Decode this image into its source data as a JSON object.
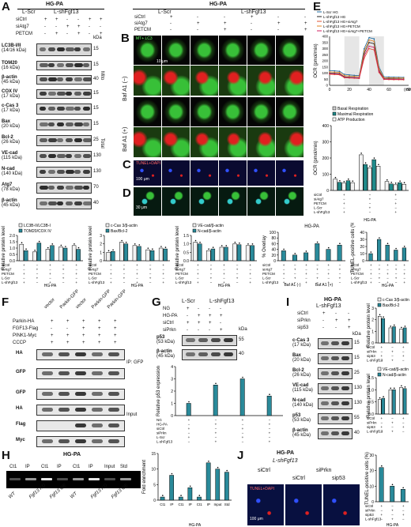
{
  "panels": {
    "A": {
      "label": "A",
      "title": "HG-PA",
      "groups": [
        "L-Scr",
        "L-shFgf13"
      ],
      "rows": [
        "siCtrl",
        "siAtg7",
        "PETCM"
      ],
      "row_signs": [
        [
          "+",
          "+",
          "-",
          "-",
          "+",
          "+"
        ],
        [
          "-",
          "-",
          "+",
          "+",
          "-",
          "-"
        ],
        [
          "-",
          "+",
          "-",
          "+",
          "-",
          "+"
        ]
      ],
      "kda": "kDa",
      "blots": [
        {
          "name": "LC3B-I/II",
          "mw": "(14/16 kDa)",
          "kda": "15"
        },
        {
          "name": "TOM20",
          "mw": "(16 kDa)",
          "kda": "15"
        },
        {
          "name": "β-actin",
          "mw": "(45 kDa)",
          "kda": "40"
        },
        {
          "name": "COX IV",
          "mw": "(17 kDa)",
          "kda": "15"
        },
        {
          "name": "c-Cas 3",
          "mw": "(17 kDa)",
          "kda": "15"
        },
        {
          "name": "Bax",
          "mw": "(20 kDa)",
          "kda": "15"
        },
        {
          "name": "Bcl-2",
          "mw": "(26 kDa)",
          "kda": "25"
        },
        {
          "name": "VE-cad",
          "mw": "(115 kDa)",
          "kda": "130"
        },
        {
          "name": "N-cad",
          "mw": "(140 kDa)",
          "kda": "130"
        },
        {
          "name": "Atg7",
          "mw": "(78 kDa)",
          "kda": "70"
        },
        {
          "name": "β-actin",
          "mw": "(45 kDa)",
          "kda": "40"
        }
      ],
      "side_labels": [
        "Mito",
        "Total"
      ]
    },
    "B": {
      "label": "B",
      "title": "HG-PA",
      "groups": [
        "L-Scr",
        "L-shFgf13"
      ],
      "rows": [
        "siCtrl",
        "siAtg7",
        "PETCM"
      ],
      "row_signs": [
        [
          "+",
          "-",
          "-",
          "+",
          "-",
          "-"
        ],
        [
          "-",
          "+",
          "+",
          "-",
          "+",
          "+"
        ],
        [
          "-",
          "-",
          "+",
          "-",
          "-",
          "+"
        ]
      ],
      "stain": "MT+ LC3",
      "scale": "10 μm",
      "side_labels": [
        "Baf A1 (−)",
        "Baf A1 (+)"
      ]
    },
    "C": {
      "label": "C",
      "stain": "TUNEL+DAPI",
      "scale": "100 μm"
    },
    "D": {
      "label": "D",
      "scale": "30 μm"
    },
    "E": {
      "label": "E",
      "legend": [
        "L-Scr HG",
        "L-shFgf13 HG",
        "L-shFgf13 HG+siAtg7",
        "L-shFgf13 HG+PETCM",
        "L-shFgf13 HG+siAtg7+PETCM"
      ],
      "ylabel": "OCR (pmol/min)",
      "xlabel": "(min)",
      "xticks": [
        "0",
        "20",
        "40",
        "60",
        "80"
      ],
      "yticks": [
        "0",
        "50",
        "100",
        "150",
        "200",
        "250",
        "300",
        "350",
        "400"
      ],
      "bar_legend": [
        "Basal Respiration",
        "Maximal Respiration",
        "ATP Production"
      ],
      "bar_ylabel": "OCR (pmol/min)",
      "bar_yticks": [
        "0",
        "100",
        "200",
        "300",
        "400"
      ],
      "bar_rows": [
        "siCtrl",
        "siAtg7",
        "PETCM",
        "L-Scr",
        "L-shFgf13"
      ],
      "group_label": "HG-PA"
    },
    "row2": {
      "charts": [
        {
          "legend": [
            "LC3B-II/LC3B-I",
            "TOM20/COX IV"
          ],
          "ylabel": "Relative protein level",
          "yticks": [
            "0.0",
            "0.5",
            "1.0",
            "1.5",
            "2.0"
          ]
        },
        {
          "legend": [
            "c-Cas 3/β-actin",
            "Bax/Bcl-2"
          ],
          "ylabel": "Relative protein level",
          "yticks": [
            "0",
            "1",
            "2",
            "3"
          ]
        },
        {
          "legend": [
            "VE-cad/β-actin",
            "N-cad/β-actin"
          ],
          "ylabel": "Relative protein level",
          "yticks": [
            "0.0",
            "0.5",
            "1.0",
            "1.5"
          ]
        },
        {
          "title": "HG-PA",
          "ylabel": "% Overlay",
          "yticks": [
            "0",
            "20",
            "40",
            "60",
            "80",
            "100"
          ],
          "groups": [
            "Baf A1 (-)",
            "Baf A1 (+)"
          ]
        },
        {
          "ylabel": "TUNEL-positive cells (%)",
          "yticks": [
            "0",
            "10",
            "20",
            "30",
            "40"
          ]
        }
      ],
      "rows": [
        "siCtrl",
        "siAtg7",
        "PETCM",
        "L-Scr",
        "L-shFgf13"
      ],
      "group_label": "HG-PA"
    },
    "F": {
      "label": "F",
      "cols": [
        "vector",
        "Parkin-GFP",
        "vector",
        "Parkin-GFP",
        "Parkin-GFP"
      ],
      "rows": [
        "Parkin-HA",
        "FGF13-Flag",
        "PINK1-Myc",
        "CCCP"
      ],
      "row_signs": [
        [
          "+",
          "+",
          "+",
          "+",
          "+"
        ],
        [
          "-",
          "-",
          "+",
          "+",
          "+"
        ],
        [
          "+",
          "+",
          "+",
          "+",
          "+"
        ],
        [
          "+",
          "+",
          "+",
          "+",
          "+"
        ]
      ],
      "blots": [
        "HA",
        "GFP",
        "GFP",
        "HA",
        "Flag",
        "Myc"
      ],
      "side_labels": [
        "IP: GFP",
        "Input"
      ]
    },
    "G": {
      "label": "G",
      "groups": [
        "L-Scr",
        "L-shFgf13"
      ],
      "rows": [
        "NG",
        "HG-PA",
        "siCtrl",
        "siPrkn"
      ],
      "row_signs": [
        [
          "+",
          "-",
          "-",
          "-"
        ],
        [
          "-",
          "+",
          "+",
          "+"
        ],
        [
          "+",
          "+",
          "+",
          "-"
        ],
        [
          "-",
          "-",
          "-",
          "+"
        ]
      ],
      "kda": "kDa",
      "blots": [
        {
          "name": "p53",
          "mw": "(53 kDa)",
          "kda": "55"
        },
        {
          "name": "β-actin",
          "mw": "(45 kDa)",
          "kda": "40"
        }
      ],
      "chart": {
        "ylabel": "Relative p53 expression",
        "yticks": [
          "0",
          "1",
          "2",
          "3",
          "4"
        ],
        "rows": [
          "NG",
          "HG-PA",
          "siCtrl",
          "siPrkn",
          "L-Scr",
          "L-shFgf13"
        ]
      }
    },
    "H": {
      "label": "H",
      "title": "HG-PA",
      "lanes": [
        "Ct1",
        "IP",
        "Ct1",
        "IP",
        "Ct1",
        "IP",
        "Input",
        "Std"
      ],
      "group_labels": [
        "WT",
        "Fgf13 KD",
        "Fgf13 OE",
        "WT",
        "Fgf13 KD",
        "Fgf13 OE"
      ],
      "chart": {
        "ylabel": "Fold enrichment",
        "yticks": [
          "0",
          "5",
          "10",
          "15"
        ],
        "xlabels": [
          "Ct1",
          "IP",
          "Ct1",
          "IP",
          "Ct1",
          "IP",
          "Input",
          "Std"
        ],
        "rows": [
          "WT",
          "Fgf13 KD",
          "Fgf13 OE"
        ],
        "group_label": "HG-PA"
      }
    },
    "I": {
      "label": "I",
      "title": "HG-PA",
      "group": "L-shFgf13",
      "rows": [
        "siCtrl",
        "siPrkn",
        "sip53"
      ],
      "row_signs": [
        [
          "+",
          "-",
          "-"
        ],
        [
          "-",
          "+",
          "+"
        ],
        [
          "-",
          "-",
          "+"
        ]
      ],
      "kda": "kDa",
      "blots": [
        {
          "name": "c-Cas 3",
          "mw": "(17 kDa)",
          "kda": "15"
        },
        {
          "name": "Bax",
          "mw": "(20 kDa)",
          "kda": "15"
        },
        {
          "name": "Bcl-2",
          "mw": "(26 kDa)",
          "kda": "25"
        },
        {
          "name": "VE-cad",
          "mw": "(115 kDa)",
          "kda": "130"
        },
        {
          "name": "N-cad",
          "mw": "(140 kDa)",
          "kda": "130"
        },
        {
          "name": "p53",
          "mw": "(53 kDa)",
          "kda": "55"
        },
        {
          "name": "β-actin",
          "mw": "(45 kDa)",
          "kda": "40"
        }
      ],
      "charts": [
        {
          "legend": [
            "c-Cas 3/β-actin",
            "Bax/Bcl-2"
          ],
          "ylabel": "Relative protein level",
          "yticks": [
            "0",
            "1",
            "2",
            "3"
          ]
        },
        {
          "legend": [
            "VE-cad/β-actin",
            "N-cad/β-actin"
          ],
          "ylabel": "Relative protein level",
          "yticks": [
            "0.0",
            "0.5",
            "1.0",
            "1.5"
          ]
        }
      ],
      "rows_chart": [
        "siCtrl",
        "siPrkn",
        "sip53",
        "L-shFgf13"
      ]
    },
    "J": {
      "label": "J",
      "title": "HG-PA",
      "group": "L-shFgf13",
      "cols": [
        "siCtrl",
        "siPrkn"
      ],
      "sub": [
        "siCtrl",
        "sip53"
      ],
      "stain": "TUNEL+DAPI",
      "scale": "100 μm",
      "chart": {
        "ylabel": "TUNEL-positive cells (%)",
        "yticks": [
          "0",
          "10",
          "20",
          "30"
        ],
        "rows": [
          "siCtrl",
          "siPrkn",
          "sip53",
          "L-shFgf13"
        ],
        "group_label": "HG-PA"
      }
    }
  },
  "colors": {
    "teal": "#2a8a9a",
    "white_bar": "#f2f2f2",
    "green": "#38c038",
    "red": "#e02020",
    "blue": "#3050ff"
  },
  "chart_data": [
    {
      "type": "line",
      "title": "",
      "xlabel": "(min)",
      "ylabel": "OCR (pmol/min)",
      "x": [
        0,
        5,
        10,
        15,
        20,
        25,
        30,
        35,
        40,
        45,
        50,
        55,
        60,
        65,
        70,
        75
      ],
      "series": [
        {
          "name": "L-Scr HG",
          "values": [
            120,
            118,
            115,
            90,
            85,
            82,
            80,
            300,
            390,
            380,
            150,
            70,
            68,
            67,
            66,
            65
          ]
        },
        {
          "name": "L-shFgf13 HG",
          "values": [
            100,
            98,
            96,
            70,
            66,
            64,
            62,
            260,
            350,
            340,
            120,
            55,
            54,
            53,
            52,
            51
          ]
        },
        {
          "name": "L-shFgf13 HG+siAtg7",
          "values": [
            90,
            88,
            86,
            62,
            60,
            58,
            56,
            220,
            300,
            290,
            105,
            48,
            47,
            46,
            46,
            45
          ]
        },
        {
          "name": "L-shFgf13 HG+PETCM",
          "values": [
            110,
            108,
            106,
            80,
            76,
            74,
            72,
            280,
            370,
            360,
            135,
            62,
            61,
            60,
            60,
            59
          ]
        },
        {
          "name": "L-shFgf13 HG+siAtg7+PETCM",
          "values": [
            95,
            93,
            91,
            66,
            63,
            61,
            60,
            240,
            320,
            310,
            112,
            51,
            50,
            49,
            49,
            48
          ]
        }
      ],
      "ylim": [
        0,
        400
      ],
      "xlim": [
        0,
        80
      ]
    },
    {
      "type": "bar",
      "title": "",
      "ylabel": "OCR (pmol/min)",
      "categories": [
        "Basal Respiration",
        "Maximal Respiration",
        "ATP Production"
      ],
      "series": [
        {
          "name": "1",
          "values": [
            70,
            220,
            55
          ]
        },
        {
          "name": "2",
          "values": [
            50,
            160,
            40
          ]
        },
        {
          "name": "3",
          "values": [
            45,
            140,
            35
          ]
        },
        {
          "name": "4",
          "values": [
            60,
            190,
            48
          ]
        },
        {
          "name": "5",
          "values": [
            48,
            150,
            38
          ]
        }
      ],
      "ylim": [
        0,
        400
      ]
    },
    {
      "type": "bar",
      "ylabel": "Relative protein level",
      "categories": [
        "1",
        "2",
        "3",
        "4",
        "5"
      ],
      "series": [
        {
          "name": "LC3B-II/LC3B-I",
          "values": [
            1.3,
            0.7,
            0.9,
            1.1,
            1.2
          ]
        },
        {
          "name": "TOM20/COX IV",
          "values": [
            0.8,
            1.4,
            1.2,
            1.0,
            0.9
          ]
        }
      ],
      "ylim": [
        0,
        2
      ]
    },
    {
      "type": "bar",
      "ylabel": "Relative protein level",
      "categories": [
        "1",
        "2",
        "3",
        "4",
        "5"
      ],
      "series": [
        {
          "name": "c-Cas 3/β-actin",
          "values": [
            1.0,
            2.2,
            1.8,
            1.3,
            1.5
          ]
        },
        {
          "name": "Bax/Bcl-2",
          "values": [
            1.1,
            2.0,
            1.7,
            1.2,
            1.4
          ]
        }
      ],
      "ylim": [
        0,
        3
      ]
    },
    {
      "type": "bar",
      "ylabel": "Relative protein level",
      "categories": [
        "1",
        "2",
        "3",
        "4",
        "5"
      ],
      "series": [
        {
          "name": "VE-cad/β-actin",
          "values": [
            1.1,
            0.6,
            0.8,
            1.0,
            0.9
          ]
        },
        {
          "name": "N-cad/β-actin",
          "values": [
            1.0,
            0.7,
            0.8,
            0.95,
            0.9
          ]
        }
      ],
      "ylim": [
        0,
        1.5
      ]
    },
    {
      "type": "bar",
      "title": "HG-PA",
      "ylabel": "% Overlay",
      "categories": [
        "1",
        "2",
        "3",
        "4",
        "5",
        "6"
      ],
      "values": [
        35,
        20,
        28,
        60,
        40,
        55
      ],
      "ylim": [
        0,
        100
      ]
    },
    {
      "type": "bar",
      "ylabel": "TUNEL-positive cells (%)",
      "categories": [
        "1",
        "2",
        "3",
        "4",
        "5"
      ],
      "values": [
        10,
        30,
        22,
        15,
        18
      ],
      "ylim": [
        0,
        40
      ]
    },
    {
      "type": "bar",
      "ylabel": "Relative p53 expression",
      "categories": [
        "1",
        "2",
        "3",
        "4"
      ],
      "values": [
        1.0,
        2.5,
        3.0,
        1.6
      ],
      "ylim": [
        0,
        4
      ]
    },
    {
      "type": "bar",
      "ylabel": "Fold enrichment",
      "categories": [
        "Ct1",
        "IP",
        "Ct1",
        "IP",
        "Ct1",
        "IP",
        "Input",
        "Std"
      ],
      "values": [
        1,
        8,
        1,
        4,
        1,
        12,
        10,
        9
      ],
      "ylim": [
        0,
        15
      ]
    },
    {
      "type": "bar",
      "ylabel": "Relative protein level",
      "categories": [
        "1",
        "2",
        "3"
      ],
      "series": [
        {
          "name": "c-Cas 3/β-actin",
          "values": [
            2.3,
            1.3,
            1.2
          ]
        },
        {
          "name": "Bax/Bcl-2",
          "values": [
            2.1,
            1.4,
            1.3
          ]
        }
      ],
      "ylim": [
        0,
        3
      ]
    },
    {
      "type": "bar",
      "ylabel": "Relative protein level",
      "categories": [
        "1",
        "2",
        "3"
      ],
      "series": [
        {
          "name": "VE-cad/β-actin",
          "values": [
            0.6,
            1.0,
            1.1
          ]
        },
        {
          "name": "N-cad/β-actin",
          "values": [
            0.65,
            1.0,
            1.05
          ]
        }
      ],
      "ylim": [
        0,
        1.5
      ]
    },
    {
      "type": "bar",
      "ylabel": "TUNEL-positive cells (%)",
      "categories": [
        "1",
        "2",
        "3"
      ],
      "values": [
        22,
        10,
        8
      ],
      "ylim": [
        0,
        30
      ]
    }
  ]
}
